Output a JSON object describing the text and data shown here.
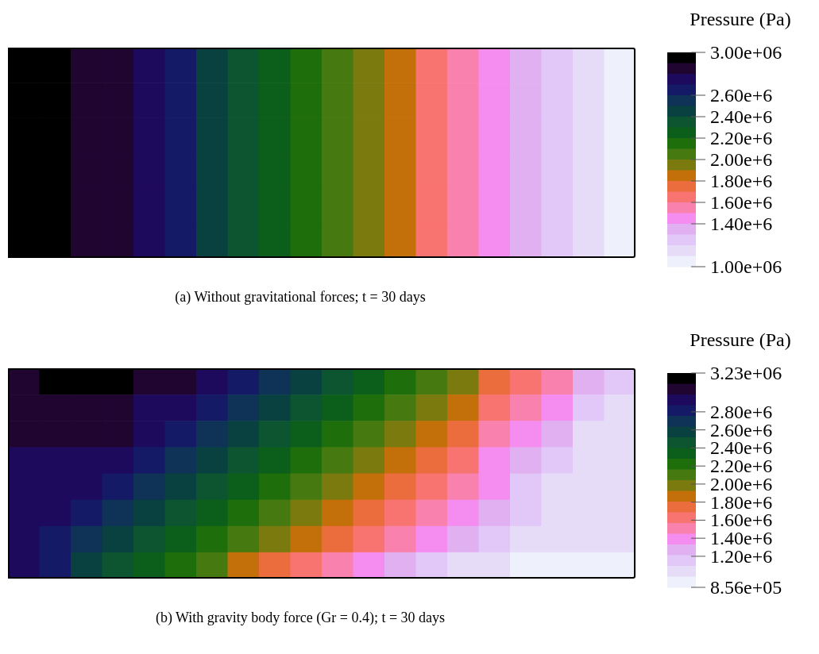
{
  "chart_data": [
    {
      "type": "heatmap",
      "clabel": "Pressure (Pa)",
      "annotations": [
        "(a)  Without gravitational forces; t = 30 days"
      ],
      "categories": [
        null,
        null,
        null,
        null,
        null,
        null,
        null,
        null,
        null,
        null,
        null,
        null,
        null,
        null,
        null,
        null,
        null,
        null,
        null,
        null
      ],
      "y_categories": [
        null,
        null,
        null,
        null,
        null,
        null
      ],
      "cells": [
        [
          2970000,
          2930000,
          2890000,
          2830000,
          2730000,
          2620000,
          2500000,
          2390000,
          2270000,
          2150000,
          2040000,
          1920000,
          1810000,
          1690000,
          1570000,
          1460000,
          1340000,
          1230000,
          1110000,
          1030000
        ],
        [
          2970000,
          2930000,
          2890000,
          2830000,
          2730000,
          2620000,
          2500000,
          2390000,
          2270000,
          2150000,
          2040000,
          1920000,
          1810000,
          1690000,
          1570000,
          1460000,
          1340000,
          1230000,
          1110000,
          1030000
        ],
        [
          2970000,
          2930000,
          2890000,
          2830000,
          2730000,
          2620000,
          2500000,
          2390000,
          2270000,
          2150000,
          2040000,
          1920000,
          1810000,
          1690000,
          1570000,
          1460000,
          1340000,
          1230000,
          1110000,
          1030000
        ],
        [
          2970000,
          2930000,
          2890000,
          2830000,
          2730000,
          2620000,
          2500000,
          2390000,
          2270000,
          2150000,
          2040000,
          1920000,
          1810000,
          1690000,
          1570000,
          1460000,
          1340000,
          1230000,
          1110000,
          1030000
        ],
        [
          2970000,
          2930000,
          2890000,
          2830000,
          2730000,
          2620000,
          2500000,
          2390000,
          2270000,
          2150000,
          2040000,
          1920000,
          1810000,
          1690000,
          1570000,
          1460000,
          1340000,
          1230000,
          1110000,
          1030000
        ],
        [
          2970000,
          2930000,
          2890000,
          2830000,
          2730000,
          2620000,
          2500000,
          2390000,
          2270000,
          2150000,
          2040000,
          1920000,
          1810000,
          1690000,
          1570000,
          1460000,
          1340000,
          1230000,
          1110000,
          1030000
        ]
      ],
      "clim": [
        1000000,
        3000000
      ],
      "cticks": [
        {
          "value": 3000000,
          "label": "3.00e+06"
        },
        {
          "value": 2600000,
          "label": "2.60e+6"
        },
        {
          "value": 2400000,
          "label": "2.40e+6"
        },
        {
          "value": 2200000,
          "label": "2.20e+6"
        },
        {
          "value": 2000000,
          "label": "2.00e+6"
        },
        {
          "value": 1800000,
          "label": "1.80e+6"
        },
        {
          "value": 1600000,
          "label": "1.60e+6"
        },
        {
          "value": 1400000,
          "label": "1.40e+6"
        },
        {
          "value": 1000000,
          "label": "1.00e+06"
        }
      ]
    },
    {
      "type": "heatmap",
      "clabel": "Pressure (Pa)",
      "annotations": [
        "(b)  With gravity body force (Gr = 0.4); t = 30 days"
      ],
      "categories": [
        null,
        null,
        null,
        null,
        null,
        null,
        null,
        null,
        null,
        null,
        null,
        null,
        null,
        null,
        null,
        null,
        null,
        null,
        null,
        null
      ],
      "y_categories": [
        null,
        null,
        null,
        null,
        null,
        null,
        null,
        null
      ],
      "cells": [
        [
          3050000,
          3170000,
          3170000,
          3170000,
          3050000,
          3050000,
          2930000,
          2810000,
          2700000,
          2580000,
          2460000,
          2340000,
          2220000,
          2100000,
          1980000,
          1750000,
          1630000,
          1510000,
          1270000,
          1150000
        ],
        [
          3050000,
          3050000,
          3050000,
          3050000,
          2930000,
          2930000,
          2810000,
          2700000,
          2580000,
          2460000,
          2340000,
          2220000,
          2100000,
          1980000,
          1860000,
          1630000,
          1510000,
          1390000,
          1150000,
          1030000
        ],
        [
          3050000,
          3050000,
          3050000,
          3050000,
          2930000,
          2810000,
          2700000,
          2580000,
          2460000,
          2340000,
          2220000,
          2100000,
          1980000,
          1860000,
          1750000,
          1510000,
          1390000,
          1270000,
          1030000,
          1030000
        ],
        [
          2930000,
          2930000,
          2930000,
          2930000,
          2810000,
          2700000,
          2580000,
          2460000,
          2340000,
          2220000,
          2100000,
          1980000,
          1860000,
          1750000,
          1630000,
          1390000,
          1270000,
          1150000,
          1030000,
          1030000
        ],
        [
          2930000,
          2930000,
          2930000,
          2810000,
          2700000,
          2580000,
          2460000,
          2340000,
          2220000,
          2100000,
          1980000,
          1860000,
          1750000,
          1630000,
          1510000,
          1390000,
          1150000,
          1030000,
          1030000,
          1030000
        ],
        [
          2930000,
          2930000,
          2810000,
          2700000,
          2580000,
          2460000,
          2340000,
          2220000,
          2100000,
          1980000,
          1860000,
          1750000,
          1630000,
          1510000,
          1390000,
          1270000,
          1150000,
          1030000,
          1030000,
          1030000
        ],
        [
          2930000,
          2810000,
          2700000,
          2580000,
          2460000,
          2340000,
          2220000,
          2100000,
          1980000,
          1860000,
          1750000,
          1630000,
          1510000,
          1390000,
          1270000,
          1150000,
          1030000,
          1030000,
          1030000,
          1030000
        ],
        [
          2930000,
          2810000,
          2580000,
          2460000,
          2340000,
          2220000,
          2100000,
          1860000,
          1750000,
          1630000,
          1510000,
          1390000,
          1270000,
          1150000,
          1030000,
          1030000,
          910000,
          910000,
          910000,
          910000
        ]
      ],
      "clim": [
        856000,
        3230000
      ],
      "cticks": [
        {
          "value": 3230000,
          "label": "3.23e+06"
        },
        {
          "value": 2800000,
          "label": "2.80e+6"
        },
        {
          "value": 2600000,
          "label": "2.60e+6"
        },
        {
          "value": 2400000,
          "label": "2.40e+6"
        },
        {
          "value": 2200000,
          "label": "2.20e+6"
        },
        {
          "value": 2000000,
          "label": "2.00e+6"
        },
        {
          "value": 1800000,
          "label": "1.80e+6"
        },
        {
          "value": 1600000,
          "label": "1.60e+6"
        },
        {
          "value": 1400000,
          "label": "1.40e+6"
        },
        {
          "value": 1200000,
          "label": "1.20e+6"
        },
        {
          "value": 856000,
          "label": "8.56e+05"
        }
      ]
    }
  ]
}
